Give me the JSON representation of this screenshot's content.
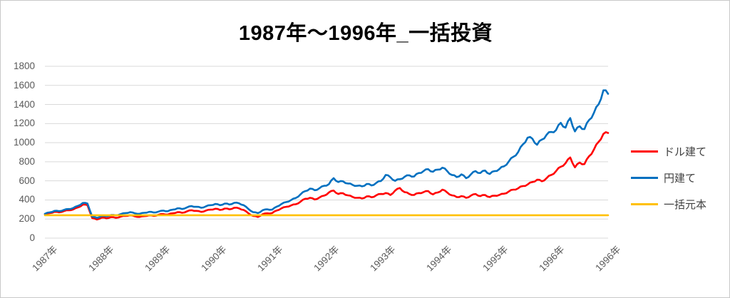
{
  "title": "1987年～1996年_一括投資",
  "chart_data": {
    "type": "line",
    "title": "1987年～1996年_一括投資",
    "xlabel": "",
    "ylabel": "",
    "ylim": [
      0,
      1800
    ],
    "y_ticks": [
      0,
      200,
      400,
      600,
      800,
      1000,
      1200,
      1400,
      1600,
      1800
    ],
    "x_tick_labels": [
      "1987年",
      "1988年",
      "1989年",
      "1990年",
      "1991年",
      "1992年",
      "1993年",
      "1994年",
      "1995年",
      "1996年",
      "1996年"
    ],
    "x_unit": "month",
    "n_points": 120,
    "grid": true,
    "legend_position": "right",
    "series": [
      {
        "name": "ドル建て",
        "color": "#ff0000",
        "values": [
          250,
          262,
          275,
          270,
          283,
          292,
          300,
          322,
          350,
          345,
          210,
          195,
          215,
          208,
          220,
          212,
          225,
          232,
          240,
          228,
          222,
          230,
          238,
          232,
          245,
          252,
          248,
          260,
          272,
          265,
          280,
          292,
          285,
          275,
          288,
          298,
          308,
          295,
          310,
          302,
          318,
          312,
          295,
          260,
          232,
          222,
          250,
          260,
          262,
          290,
          312,
          328,
          342,
          355,
          382,
          412,
          422,
          405,
          425,
          445,
          478,
          498,
          462,
          470,
          448,
          432,
          422,
          415,
          438,
          428,
          448,
          462,
          472,
          452,
          498,
          525,
          482,
          462,
          452,
          472,
          482,
          492,
          458,
          478,
          508,
          478,
          448,
          430,
          440,
          422,
          445,
          462,
          440,
          452,
          430,
          445,
          452,
          465,
          488,
          508,
          522,
          545,
          562,
          588,
          612,
          595,
          628,
          662,
          702,
          748,
          785,
          845,
          742,
          792,
          775,
          858,
          928,
          1008,
          1092,
          1102
        ]
      },
      {
        "name": "円建て",
        "color": "#0070c0",
        "values": [
          255,
          270,
          285,
          282,
          295,
          305,
          315,
          338,
          368,
          362,
          225,
          212,
          232,
          228,
          242,
          238,
          252,
          262,
          272,
          260,
          255,
          265,
          275,
          268,
          278,
          288,
          282,
          298,
          312,
          305,
          322,
          335,
          328,
          318,
          332,
          345,
          358,
          345,
          362,
          352,
          370,
          365,
          345,
          305,
          272,
          262,
          292,
          302,
          298,
          330,
          358,
          378,
          398,
          420,
          458,
          492,
          518,
          502,
          522,
          548,
          565,
          628,
          588,
          595,
          572,
          558,
          548,
          542,
          568,
          552,
          578,
          598,
          662,
          638,
          600,
          618,
          642,
          658,
          645,
          682,
          702,
          722,
          695,
          718,
          738,
          702,
          662,
          640,
          668,
          628,
          668,
          702,
          682,
          708,
          672,
          702,
          722,
          752,
          802,
          852,
          902,
          982,
          1052,
          1042,
          978,
          1032,
          1082,
          1112,
          1132,
          1208,
          1158,
          1258,
          1118,
          1172,
          1142,
          1238,
          1312,
          1402,
          1548,
          1512
        ]
      },
      {
        "name": "一括元本",
        "color": "#ffc000",
        "constant": 240
      }
    ],
    "colors": {
      "grid": "#d9d9d9",
      "axis_text": "#595959",
      "legend_text": "#3f3f3f",
      "title_text": "#000000"
    }
  }
}
